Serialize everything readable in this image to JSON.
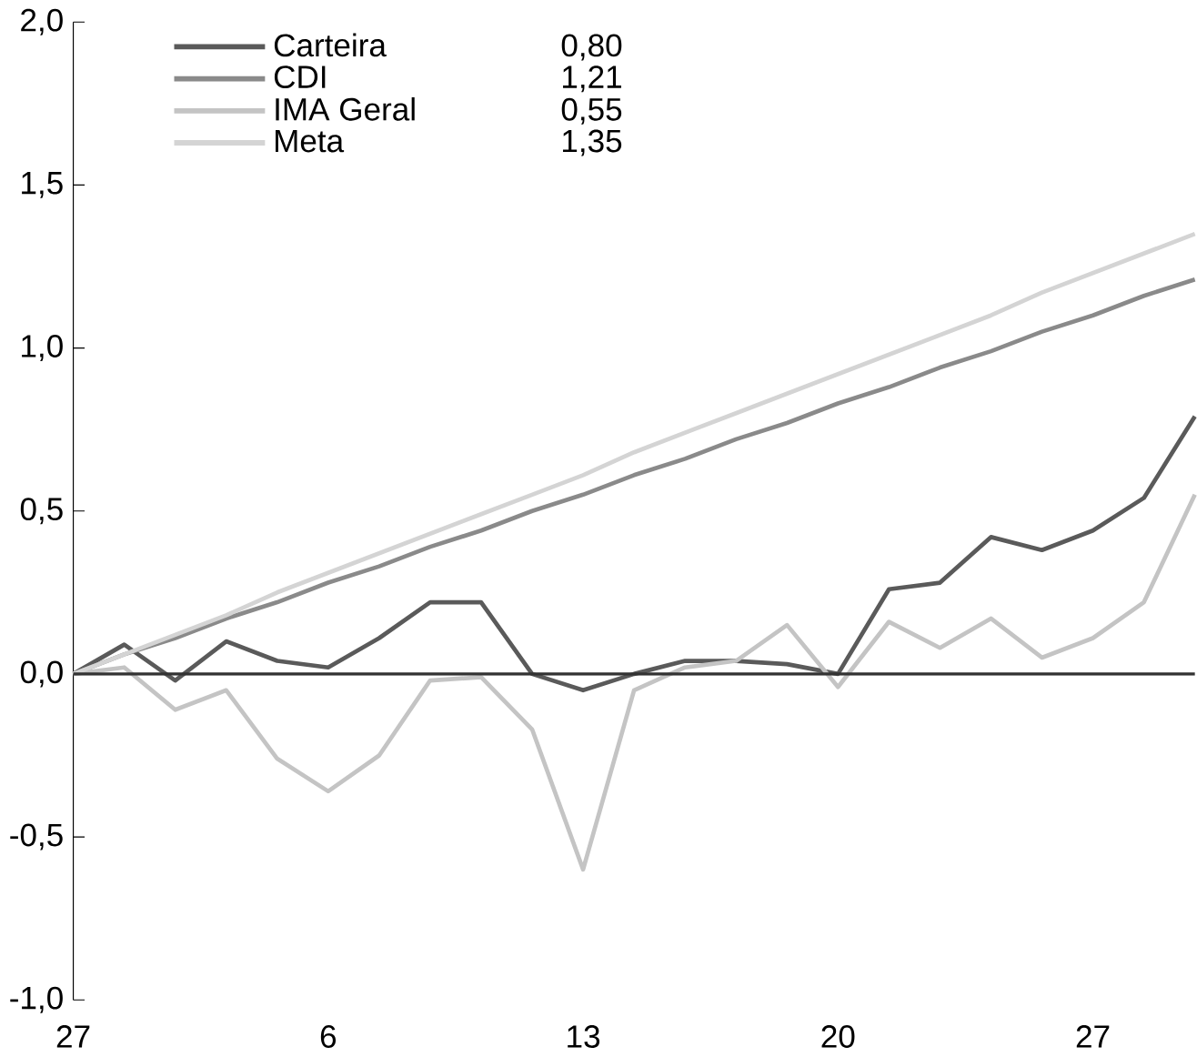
{
  "chart_data": {
    "type": "line",
    "categories": [
      "27",
      null,
      null,
      null,
      null,
      "6",
      null,
      null,
      null,
      null,
      "13",
      null,
      null,
      null,
      null,
      "20",
      null,
      null,
      null,
      null,
      "27",
      null,
      null
    ],
    "series": [
      {
        "name": "Carteira",
        "color": "#5a5a5a",
        "values": [
          0,
          0.09,
          -0.02,
          0.1,
          0.04,
          0.02,
          0.11,
          0.22,
          0.22,
          0.0,
          -0.05,
          0.0,
          0.04,
          0.04,
          0.03,
          0.0,
          0.26,
          0.28,
          0.42,
          0.38,
          0.44,
          0.54,
          0.79
        ]
      },
      {
        "name": "CDI",
        "color": "#8a8a8a",
        "values": [
          0,
          0.06,
          0.11,
          0.17,
          0.22,
          0.28,
          0.33,
          0.39,
          0.44,
          0.5,
          0.55,
          0.61,
          0.66,
          0.72,
          0.77,
          0.83,
          0.88,
          0.94,
          0.99,
          1.05,
          1.1,
          1.16,
          1.21
        ]
      },
      {
        "name": "IMA Geral",
        "color": "#c4c4c4",
        "values": [
          0,
          0.02,
          -0.11,
          -0.05,
          -0.26,
          -0.36,
          -0.25,
          -0.02,
          -0.01,
          -0.17,
          -0.6,
          -0.05,
          0.02,
          0.04,
          0.15,
          -0.04,
          0.16,
          0.08,
          0.17,
          0.05,
          0.11,
          0.22,
          0.55
        ]
      },
      {
        "name": "Meta",
        "color": "#d4d4d4",
        "values": [
          0,
          0.06,
          0.12,
          0.18,
          0.25,
          0.31,
          0.37,
          0.43,
          0.49,
          0.55,
          0.61,
          0.68,
          0.74,
          0.8,
          0.86,
          0.92,
          0.98,
          1.04,
          1.1,
          1.17,
          1.23,
          1.29,
          1.35
        ]
      }
    ],
    "annotations": [
      "0,80",
      "1,21",
      "0,55",
      "1,35"
    ],
    "ylim": [
      -1,
      2
    ],
    "yticks": [
      {
        "value": -1,
        "label": "-1,0"
      },
      {
        "value": -0.5,
        "label": "-0,5"
      },
      {
        "value": 0,
        "label": "0,0"
      },
      {
        "value": 0.5,
        "label": "0,5"
      },
      {
        "value": 1,
        "label": "1,0"
      },
      {
        "value": 1.5,
        "label": "1,5"
      },
      {
        "value": 2,
        "label": "2,0"
      }
    ],
    "ref_lines": [
      {
        "axis": "y",
        "value": 0,
        "label": null,
        "color": "#333333"
      }
    ],
    "legend": "top left",
    "grid": false,
    "marker": "none",
    "line_style": "solid"
  }
}
